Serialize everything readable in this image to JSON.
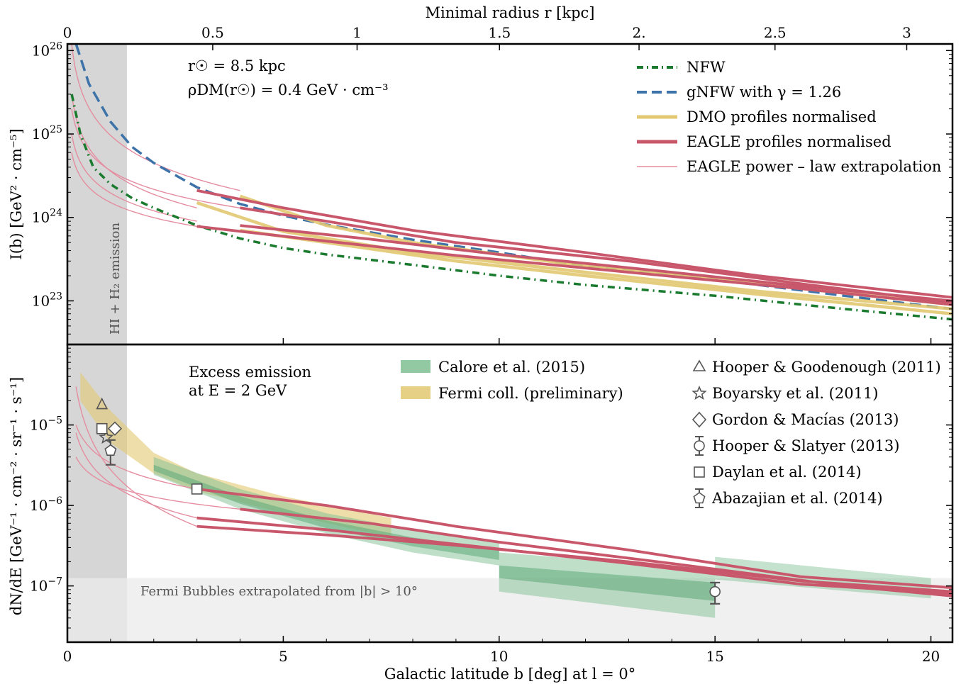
{
  "chart_data": [
    {
      "type": "line",
      "panel": "top",
      "ylabel": "I(b) [GeV² · cm⁻⁵]",
      "x2label": "Minimal radius r [kpc]",
      "x2ticks": [
        "0",
        "0.5",
        "1",
        "1.5",
        "2.",
        "2.5",
        "3"
      ],
      "yscale": "log",
      "ylim": [
        3e+22,
        1.2e+26
      ],
      "xlim": [
        0,
        20.5
      ],
      "yticks": [
        "10^23",
        "10^24",
        "10^25",
        "10^26"
      ],
      "annotations": [
        "r☉ = 8.5 kpc",
        "ρDM(r☉) = 0.4 GeV · cm⁻³",
        "HI + H₂ emission"
      ],
      "legend_position": "top-right",
      "legend": [
        "NFW",
        "gNFW with γ = 1.26",
        "DMO profiles normalised",
        "EAGLE profiles normalised",
        "EAGLE power – law extrapolation"
      ],
      "series": [
        {
          "name": "NFW",
          "style": "dashdot",
          "color": "#1a7a2e",
          "x": [
            0.1,
            0.3,
            0.6,
            1,
            1.5,
            2,
            3,
            4,
            5,
            6,
            8,
            10,
            12,
            15,
            18,
            20.5
          ],
          "y": [
            3e+25,
            1e+25,
            4e+24,
            2.5e+24,
            1.7e+24,
            1.3e+24,
            8e+23,
            5.6e+23,
            4.3e+23,
            3.6e+23,
            2.7e+23,
            2e+23,
            1.55e+23,
            1.15e+23,
            8e+22,
            6e+22
          ]
        },
        {
          "name": "gNFW with γ = 1.26",
          "style": "dashed",
          "color": "#3d73a8",
          "x": [
            0.2,
            0.5,
            1,
            1.5,
            2,
            3,
            4,
            5,
            6,
            8,
            10,
            12,
            15,
            18,
            20.5
          ],
          "y": [
            1.2e+26,
            4e+25,
            1.4e+25,
            7e+24,
            4.5e+24,
            2.3e+24,
            1.45e+24,
            1.05e+24,
            8.2e+23,
            5.4e+23,
            3.8e+23,
            2.6e+23,
            1.8e+23,
            1.15e+23,
            8e+22
          ]
        },
        {
          "name": "DMO profile 1",
          "style": "band",
          "color": "#e2c871",
          "x": [
            3,
            5,
            8,
            12,
            16,
            20.5
          ],
          "y": [
            1.5e+24,
            6.8e+23,
            3.8e+23,
            2.2e+23,
            1.3e+23,
            8e+22
          ]
        },
        {
          "name": "DMO profile 2",
          "style": "band",
          "color": "#e2c871",
          "x": [
            4,
            6,
            8,
            12,
            16,
            20.5
          ],
          "y": [
            1.8e+24,
            8e+23,
            5e+23,
            2.6e+23,
            1.6e+23,
            9e+22
          ]
        },
        {
          "name": "DMO profile 3",
          "style": "band",
          "color": "#e2c871",
          "x": [
            4,
            6,
            9,
            12,
            16,
            20.5
          ],
          "y": [
            7e+23,
            5e+23,
            3e+23,
            2e+23,
            1.2e+23,
            7e+22
          ]
        },
        {
          "name": "EAGLE profile 1",
          "style": "solid",
          "color": "#c9576b",
          "x": [
            3,
            5,
            8,
            12,
            16,
            20.5
          ],
          "y": [
            2.1e+24,
            1.3e+24,
            7e+23,
            3.8e+23,
            2e+23,
            1.1e+23
          ]
        },
        {
          "name": "EAGLE profile 2",
          "style": "solid",
          "color": "#c9576b",
          "x": [
            4,
            6,
            9,
            13,
            17,
            20.5
          ],
          "y": [
            1.3e+24,
            9e+23,
            5e+23,
            3e+23,
            1.6e+23,
            9.5e+22
          ]
        },
        {
          "name": "EAGLE profile 3",
          "style": "solid",
          "color": "#c9576b",
          "x": [
            3,
            6,
            9,
            13,
            17,
            20.5
          ],
          "y": [
            7.8e+23,
            5.2e+23,
            3.5e+23,
            2.2e+23,
            1.4e+23,
            9e+22
          ]
        },
        {
          "name": "EAGLE profile 4",
          "style": "solid",
          "color": "#c9576b",
          "x": [
            4,
            7,
            10,
            14,
            17,
            20.5
          ],
          "y": [
            8e+23,
            5.5e+23,
            3.6e+23,
            2.2e+23,
            1.5e+23,
            1e+23
          ]
        }
      ],
      "extrapolation_color": "#e58da0"
    },
    {
      "type": "scatter",
      "panel": "bottom",
      "xlabel": "Galactic latitude b [deg] at l = 0°",
      "ylabel": "dN/dE [GeV⁻¹ · cm⁻² · sr⁻¹ · s⁻¹]",
      "yscale": "log",
      "ylim": [
        2e-08,
        0.0001
      ],
      "xlim": [
        0,
        20.5
      ],
      "xticks": [
        "0",
        "5",
        "10",
        "15",
        "20"
      ],
      "yticks": [
        "10^-7",
        "10^-6",
        "10^-5"
      ],
      "annotations": [
        "Excess emission",
        "at E = 2 GeV",
        "Fermi Bubbles extrapolated from |b| > 10°"
      ],
      "legend_position": "top",
      "bands_legend": [
        "Calore et al. (2015)",
        "Fermi coll. (preliminary)"
      ],
      "markers_legend": [
        "Hooper & Goodenough (2011)",
        "Boyarsky et al. (2011)",
        "Gordon & Macías (2013)",
        "Hooper & Slatyer (2013)",
        "Daylan et al. (2014)",
        "Abazajian et al. (2014)"
      ],
      "band_colors": {
        "calore": "#7fbf93",
        "fermi": "#e2c871"
      },
      "points": [
        {
          "marker": "triangle",
          "x": 0.8,
          "y": 1.8e-05
        },
        {
          "marker": "star",
          "x": 0.9,
          "y": 7e-06
        },
        {
          "marker": "diamond",
          "x": 1.1,
          "y": 9e-06
        },
        {
          "marker": "circle",
          "x": 15,
          "y": 8.5e-08,
          "ylo": 6e-08,
          "yhi": 1.1e-07
        },
        {
          "marker": "square",
          "x": 0.8,
          "y": 9e-06
        },
        {
          "marker": "square",
          "x": 3,
          "y": 1.6e-06
        },
        {
          "marker": "pentagon",
          "x": 1.0,
          "y": 4.8e-06,
          "ylo": 3.2e-06,
          "yhi": 6.5e-06
        }
      ],
      "series": [
        {
          "name": "EAGLE 1",
          "color": "#c9576b",
          "x": [
            4,
            7,
            10,
            14,
            18,
            20.5
          ],
          "y": [
            9e-07,
            6e-07,
            3.5e-07,
            1.9e-07,
            1e-07,
            7.5e-08
          ]
        },
        {
          "name": "EAGLE 2",
          "color": "#c9576b",
          "x": [
            3,
            6,
            9,
            13,
            17,
            20.5
          ],
          "y": [
            7e-07,
            5e-07,
            3.3e-07,
            1.9e-07,
            1.05e-07,
            8e-08
          ]
        },
        {
          "name": "EAGLE 3",
          "color": "#c9576b",
          "x": [
            3,
            6,
            9,
            13,
            17,
            20.5
          ],
          "y": [
            5.5e-07,
            4.3e-07,
            3.2e-07,
            2e-07,
            1.15e-07,
            8.5e-08
          ]
        },
        {
          "name": "EAGLE 4",
          "color": "#c9576b",
          "x": [
            3,
            6,
            9,
            13,
            17,
            20.5
          ],
          "y": [
            1.6e-06,
            1e-06,
            5.5e-07,
            2.8e-07,
            1.3e-07,
            9.5e-08
          ]
        }
      ]
    }
  ]
}
